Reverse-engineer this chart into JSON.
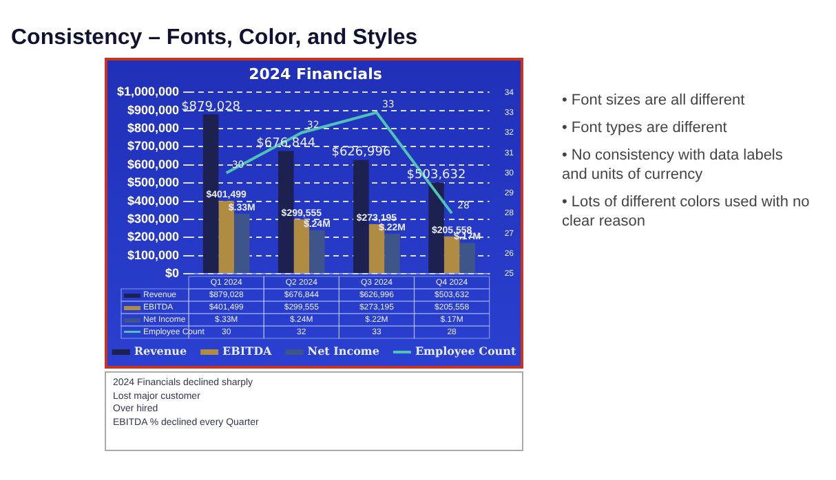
{
  "chart_data": {
    "type": "bar",
    "title": "Consistency – Fonts, Color, and Styles",
    "subtitle": "2024 Financials",
    "categories": [
      "Q1 2024",
      "Q2 2024",
      "Q3 2024",
      "Q4 2024"
    ],
    "series": [
      {
        "name": "Revenue",
        "color": "#1c2150",
        "values": [
          879028,
          676844,
          626996,
          503632
        ],
        "value_labels": [
          "$879,028",
          "$676,844",
          "$626,996",
          "$503,632"
        ]
      },
      {
        "name": "EBITDA",
        "color": "#b08b42",
        "values": [
          401499,
          299555,
          273195,
          205558
        ],
        "value_labels": [
          "$401,499",
          "$299,555",
          "$273,195",
          "$205,558"
        ]
      },
      {
        "name": "Net Income",
        "color": "#3d5588",
        "values": [
          330000,
          240000,
          220000,
          170000
        ],
        "value_labels": [
          "$.33M",
          "$.24M",
          "$.22M",
          "$.17M"
        ]
      },
      {
        "name": "Employee Count",
        "type": "line",
        "axis": "y2",
        "color": "#4fc4b4",
        "values": [
          30,
          32,
          33,
          28
        ],
        "value_labels": [
          "30",
          "32",
          "33",
          "28"
        ]
      }
    ],
    "ylim": [
      0,
      1000000
    ],
    "yticks": [
      {
        "value": 0,
        "label": "$0"
      },
      {
        "value": 100000,
        "label": "$100,000"
      },
      {
        "value": 200000,
        "label": "$200,000"
      },
      {
        "value": 300000,
        "label": "$300,000"
      },
      {
        "value": 400000,
        "label": "$400,000"
      },
      {
        "value": 500000,
        "label": "$500,000"
      },
      {
        "value": 600000,
        "label": "$600,000"
      },
      {
        "value": 700000,
        "label": "$700,000"
      },
      {
        "value": 800000,
        "label": "$800,000"
      },
      {
        "value": 900000,
        "label": "$900,000"
      },
      {
        "value": 1000000,
        "label": "$1,000,000"
      }
    ],
    "y2lim": [
      25,
      34
    ],
    "y2ticks": [
      25,
      26,
      27,
      28,
      29,
      30,
      31,
      32,
      33,
      34
    ],
    "grid": "y",
    "legend": "bottom",
    "marker": "none",
    "line_style": "solid",
    "annotations": [
      "• Font sizes are all different",
      "• Font types are different",
      "• No consistency with data labels and units of currency",
      "• Lots of different colors used with no clear reason",
      "2024 Financials declined sharply",
      "Lost major customer",
      "Over hired",
      "EBITDA % declined every Quarter"
    ]
  }
}
